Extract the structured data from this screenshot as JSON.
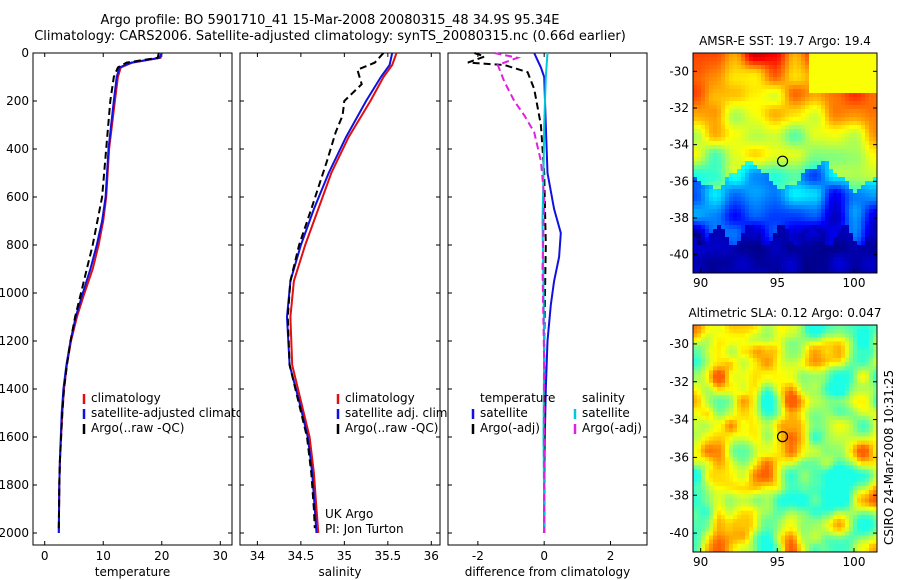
{
  "header": {
    "title_line1": "Argo profile: BO 5901710_41 15-Mar-2008 20080315_48 34.9S 95.34E",
    "title_line2": "Climatology: CARS2006. Satellite-adjusted climatology: synTS_20080315.nc (0.66d earlier)"
  },
  "side_label": "CSIRO 24-Mar-2008 10:31:25",
  "colors": {
    "climatology": "#e01010",
    "satellite": "#1010e0",
    "argo": "#000000",
    "sat_salinity": "#00c8d8",
    "argo_salinity": "#e020e0"
  },
  "chart_data": [
    {
      "type": "line",
      "id": "temperature",
      "xlabel": "temperature",
      "ylabel": "",
      "xlim": [
        -2,
        32
      ],
      "ylim": [
        2050,
        0
      ],
      "y_reversed": true,
      "xticks": [
        0,
        10,
        20,
        30
      ],
      "yticks": [
        0,
        200,
        400,
        600,
        800,
        1000,
        1200,
        1400,
        1600,
        1800,
        2000
      ],
      "legend": [
        "climatology",
        "satellite-adjusted climatology",
        "Argo(..raw -QC)"
      ],
      "series": [
        {
          "name": "climatology",
          "color": "#e01010",
          "dash": "",
          "x": [
            20,
            19.8,
            15,
            13,
            12.5,
            12,
            11,
            10.5,
            10,
            9.2,
            8.2,
            6.8,
            5.5,
            4.5,
            3.8,
            3.3,
            3,
            2.8,
            2.6,
            2.5,
            2.4
          ],
          "y": [
            0,
            20,
            40,
            60,
            100,
            200,
            400,
            600,
            700,
            800,
            900,
            1000,
            1100,
            1200,
            1300,
            1400,
            1500,
            1600,
            1700,
            1800,
            2000
          ]
        },
        {
          "name": "satellite-adjusted climatology",
          "color": "#1010e0",
          "dash": "",
          "x": [
            20,
            19.6,
            14.8,
            12.8,
            12.3,
            11.8,
            10.9,
            10.4,
            9.8,
            8.9,
            7.8,
            6.5,
            5.3,
            4.4,
            3.7,
            3.2,
            2.9,
            2.75,
            2.6,
            2.5,
            2.4
          ],
          "y": [
            0,
            20,
            40,
            60,
            100,
            200,
            400,
            600,
            700,
            800,
            900,
            1000,
            1100,
            1200,
            1300,
            1400,
            1500,
            1600,
            1700,
            1800,
            2000
          ]
        },
        {
          "name": "Argo(..raw -QC)",
          "color": "#000000",
          "dash": "7,4",
          "x": [
            19.5,
            19.3,
            14,
            12.5,
            11.8,
            11.2,
            10.5,
            9.8,
            9,
            8.2,
            7.2,
            6.2,
            5.2,
            4.4,
            3.8,
            3.3,
            3,
            2.8,
            2.6,
            2.5,
            2.4
          ],
          "y": [
            0,
            20,
            40,
            60,
            100,
            200,
            400,
            600,
            700,
            800,
            900,
            1000,
            1100,
            1200,
            1300,
            1400,
            1500,
            1600,
            1700,
            1800,
            1980
          ]
        }
      ]
    },
    {
      "type": "line",
      "id": "salinity",
      "xlabel": "salinity",
      "ylabel": "",
      "xlim": [
        33.8,
        36.1
      ],
      "ylim": [
        2050,
        0
      ],
      "y_reversed": true,
      "xticks": [
        34,
        34.5,
        35,
        35.5,
        36
      ],
      "yticks": [
        0,
        200,
        400,
        600,
        800,
        1000,
        1200,
        1400,
        1600,
        1800,
        2000
      ],
      "legend": [
        "climatology",
        "satellite adj. clim.",
        "Argo(..raw -QC)"
      ],
      "annotation": [
        "UK Argo",
        "PI: Jon Turton"
      ],
      "series": [
        {
          "name": "climatology",
          "color": "#e01010",
          "dash": "",
          "x": [
            35.6,
            35.55,
            35.45,
            35.3,
            35.05,
            34.85,
            34.7,
            34.55,
            34.42,
            34.38,
            34.4,
            34.5,
            34.6,
            34.65,
            34.68,
            34.7
          ],
          "y": [
            0,
            50,
            100,
            200,
            350,
            500,
            650,
            800,
            950,
            1100,
            1300,
            1450,
            1600,
            1750,
            1900,
            2000
          ]
        },
        {
          "name": "satellite adj. clim.",
          "color": "#1010e0",
          "dash": "",
          "x": [
            35.55,
            35.52,
            35.42,
            35.25,
            35.02,
            34.82,
            34.65,
            34.5,
            34.38,
            34.34,
            34.37,
            34.48,
            34.58,
            34.63,
            34.66,
            34.68
          ],
          "y": [
            0,
            50,
            100,
            200,
            350,
            500,
            650,
            800,
            950,
            1100,
            1300,
            1450,
            1600,
            1750,
            1900,
            2000
          ]
        },
        {
          "name": "Argo(..raw -QC)",
          "color": "#000000",
          "dash": "7,4",
          "x": [
            35.45,
            35.35,
            35.15,
            35.2,
            35,
            34.98,
            34.9,
            34.8,
            34.62,
            34.48,
            34.38,
            34.35,
            34.37,
            34.47,
            34.57,
            34.62,
            34.65,
            34.66
          ],
          "y": [
            0,
            40,
            70,
            130,
            200,
            260,
            330,
            450,
            650,
            800,
            950,
            1100,
            1300,
            1450,
            1600,
            1750,
            1900,
            1980
          ]
        }
      ]
    },
    {
      "type": "line",
      "id": "difference",
      "xlabel": "difference from climatology",
      "ylabel": "",
      "xlim": [
        -2.9,
        3.1
      ],
      "ylim": [
        2050,
        0
      ],
      "y_reversed": true,
      "xticks": [
        -2,
        0,
        2
      ],
      "yticks": [
        0,
        200,
        400,
        600,
        800,
        1000,
        1200,
        1400,
        1600,
        1800,
        2000
      ],
      "legend": [
        "temperature",
        "satellite",
        "Argo(-adj)",
        "salinity",
        "satellite",
        "Argo(-adj)"
      ],
      "series": [
        {
          "name": "temperature satellite",
          "color": "#1010e0",
          "dash": "",
          "x": [
            -0.3,
            -0.2,
            -0.1,
            0,
            0.05,
            0.1,
            0.3,
            0.5,
            0.45,
            0.3,
            0.2,
            0.1,
            0.05,
            0.02,
            0,
            0
          ],
          "y": [
            0,
            30,
            60,
            100,
            300,
            500,
            650,
            750,
            850,
            950,
            1050,
            1200,
            1400,
            1600,
            1800,
            2000
          ]
        },
        {
          "name": "temperature Argo(-adj)",
          "color": "#000000",
          "dash": "7,4",
          "x": [
            -2.1,
            -1.8,
            -2.3,
            -1.2,
            -0.5,
            -0.3,
            -0.1,
            0,
            0.05,
            0,
            0
          ],
          "y": [
            0,
            15,
            40,
            50,
            80,
            150,
            300,
            500,
            800,
            1200,
            2000
          ]
        },
        {
          "name": "salinity satellite",
          "color": "#00c8d8",
          "dash": "",
          "x": [
            0.1,
            0.05,
            0,
            -0.02,
            -0.05,
            -0.03,
            0,
            -0.02,
            0,
            0
          ],
          "y": [
            0,
            100,
            300,
            500,
            700,
            900,
            1200,
            1600,
            1900,
            2000
          ]
        },
        {
          "name": "salinity Argo(-adj)",
          "color": "#e020e0",
          "dash": "7,4",
          "x": [
            -1.5,
            -0.8,
            -1.4,
            -1.2,
            -0.9,
            -0.6,
            -0.3,
            -0.1,
            0,
            -0.05,
            0,
            0
          ],
          "y": [
            0,
            20,
            50,
            120,
            200,
            260,
            330,
            450,
            600,
            900,
            1300,
            2000
          ]
        }
      ]
    },
    {
      "type": "heatmap",
      "id": "sst",
      "title": "AMSR-E SST: 19.7 Argo: 19.4",
      "xlim": [
        89.5,
        101.5
      ],
      "ylim": [
        -41,
        -29
      ],
      "xticks": [
        90,
        95,
        100
      ],
      "yticks": [
        -30,
        -32,
        -34,
        -36,
        -38,
        -40
      ],
      "marker": {
        "lon": 95.34,
        "lat": -34.9
      }
    },
    {
      "type": "heatmap",
      "id": "sla",
      "title": "Altimetric SLA: 0.12 Argo: 0.047",
      "xlim": [
        89.5,
        101.5
      ],
      "ylim": [
        -41,
        -29
      ],
      "xticks": [
        90,
        95,
        100
      ],
      "yticks": [
        -30,
        -32,
        -34,
        -36,
        -38,
        -40
      ],
      "marker": {
        "lon": 95.34,
        "lat": -34.9
      }
    }
  ]
}
